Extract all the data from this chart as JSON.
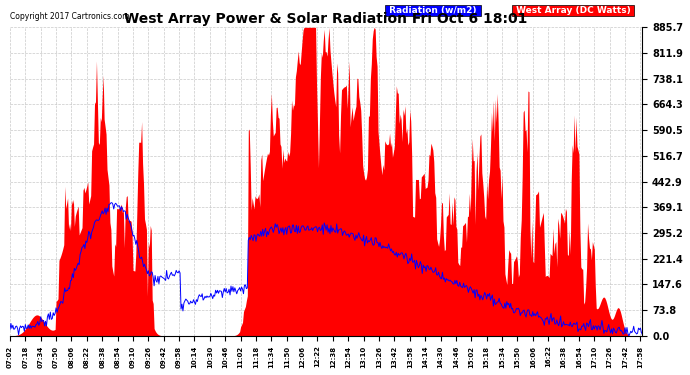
{
  "title": "West Array Power & Solar Radiation Fri Oct 6 18:01",
  "copyright": "Copyright 2017 Cartronics.com",
  "legend_labels": [
    "Radiation (w/m2)",
    "West Array (DC Watts)"
  ],
  "legend_bg_colors": [
    "blue",
    "red"
  ],
  "y_ticks": [
    0.0,
    73.8,
    147.6,
    221.4,
    295.2,
    369.1,
    442.9,
    516.7,
    590.5,
    664.3,
    738.1,
    811.9,
    885.7
  ],
  "y_max": 885.7,
  "y_min": 0.0,
  "bg_color": "#ffffff",
  "plot_bg_color": "#ffffff",
  "grid_color": "#bbbbbb",
  "fill_color": "red",
  "line_color": "blue",
  "x_tick_interval_min": 16,
  "figsize": [
    6.9,
    3.75
  ],
  "dpi": 100
}
